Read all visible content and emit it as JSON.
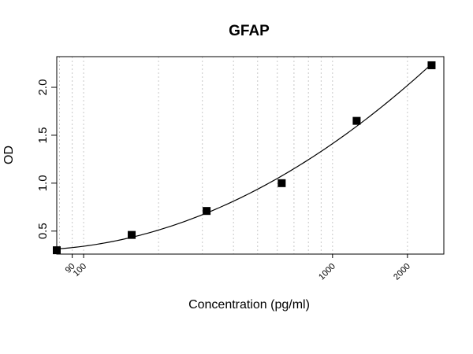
{
  "chart_data": {
    "type": "scatter",
    "title": "GFAP",
    "xlabel": "Concentration (pg/ml)",
    "ylabel": "OD",
    "x_scale": "log",
    "xlim": [
      78,
      2800
    ],
    "ylim": [
      0.26,
      2.32
    ],
    "x_tick_values": [
      90,
      100,
      1000,
      2000
    ],
    "x_tick_labels": [
      "90",
      "100",
      "1000",
      "2000"
    ],
    "y_ticks": [
      0.5,
      1.0,
      1.5,
      2.0
    ],
    "y_tick_labels": [
      "0.5",
      "1.0",
      "1.5",
      "2.0"
    ],
    "grid": "vertical dotted",
    "points": [
      {
        "x": 78,
        "y": 0.3
      },
      {
        "x": 156,
        "y": 0.46
      },
      {
        "x": 312,
        "y": 0.71
      },
      {
        "x": 625,
        "y": 1.0
      },
      {
        "x": 1250,
        "y": 1.65
      },
      {
        "x": 2500,
        "y": 2.23
      }
    ],
    "fit_curve": true,
    "colors": {
      "marker": "#000000",
      "curve": "#000000",
      "grid": "#c8c8c8",
      "frame": "#000000"
    }
  }
}
